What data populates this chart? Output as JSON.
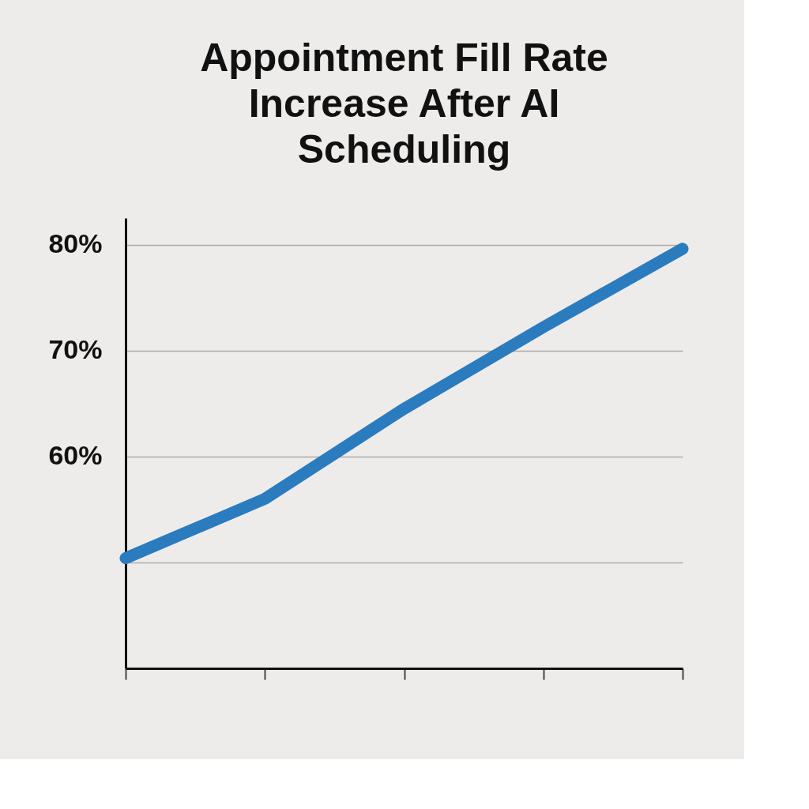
{
  "chart_data": {
    "type": "line",
    "title": "Appointment Fill Rate Increase After AI Scheduling",
    "categories": [
      null,
      null,
      null,
      null,
      null
    ],
    "series": [
      {
        "color": "#2b7bbf",
        "values": [
          50.4,
          56.0,
          64.5,
          72.2,
          79.6
        ]
      }
    ],
    "ylim": [
      40,
      82.5
    ],
    "yticks": [
      {
        "value": 50,
        "label": null
      },
      {
        "value": 60,
        "label": "60%"
      },
      {
        "value": 70,
        "label": "70%"
      },
      {
        "value": 80,
        "label": "80%"
      }
    ],
    "grid": "y",
    "tick_labels": "y"
  }
}
